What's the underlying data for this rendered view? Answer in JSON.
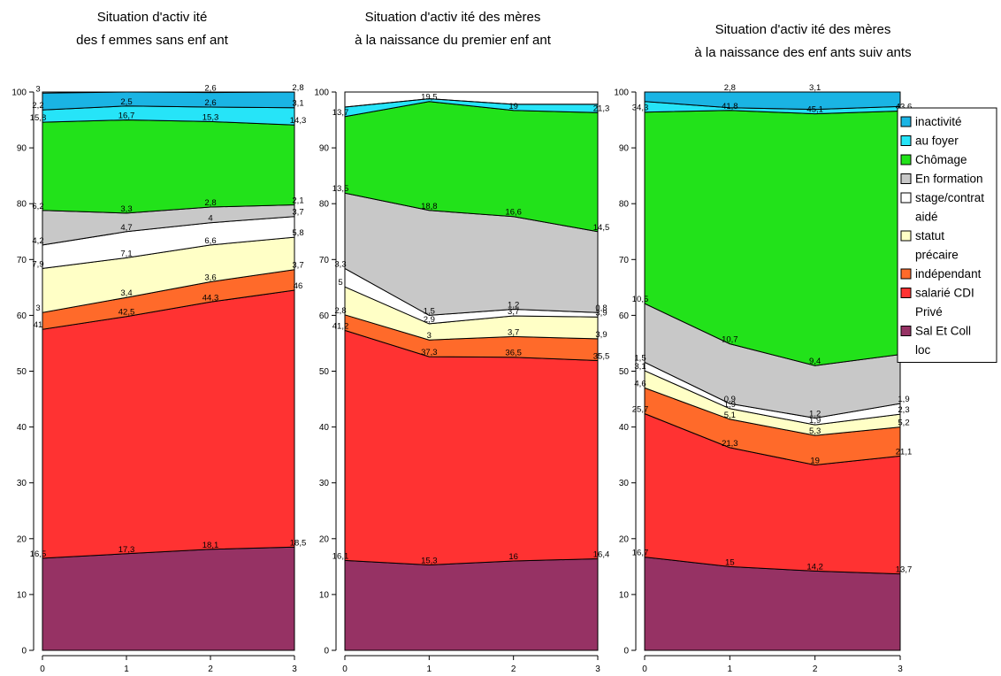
{
  "chart_data": [
    {
      "type": "area",
      "title": [
        "Situation d'activ ité",
        "des f emmes sans enf ant"
      ],
      "x": [
        0,
        1,
        2,
        3
      ],
      "xticks": [
        "0",
        "1",
        "2",
        "3"
      ],
      "ylim": [
        0,
        100
      ],
      "yticks": [
        "0",
        "10",
        "20",
        "30",
        "40",
        "50",
        "60",
        "70",
        "80",
        "90",
        "100"
      ],
      "series": [
        {
          "name": "Sal Et Coll loc",
          "values": [
            16.5,
            17.3,
            18.1,
            18.5
          ],
          "labels": [
            "16,5",
            "17,3",
            "18,1",
            "18,5"
          ]
        },
        {
          "name": "salarié CDI Privé",
          "values": [
            41,
            42.5,
            44.3,
            46
          ],
          "labels": [
            "41",
            "42,5",
            "44,3",
            "46"
          ]
        },
        {
          "name": "indépendant",
          "values": [
            3,
            3.4,
            3.6,
            3.7
          ],
          "labels": [
            "3",
            "3,4",
            "3,6",
            "3,7"
          ]
        },
        {
          "name": "statut précaire",
          "values": [
            7.9,
            7.1,
            6.6,
            5.8
          ],
          "labels": [
            "7,9",
            "7,1",
            "6,6",
            "5,8"
          ]
        },
        {
          "name": "stage/contrat aidé",
          "values": [
            4.2,
            4.7,
            4,
            3.7
          ],
          "labels": [
            "4,2",
            "4,7",
            "4",
            "3,7"
          ]
        },
        {
          "name": "En formation",
          "values": [
            6.2,
            3.3,
            2.8,
            2.1
          ],
          "labels": [
            "6,2",
            "3,3",
            "2,8",
            "2,1"
          ]
        },
        {
          "name": "Chômage",
          "values": [
            15.8,
            16.7,
            15.3,
            14.3
          ],
          "labels": [
            "15,8",
            "16,7",
            "15,3",
            "14,3"
          ]
        },
        {
          "name": "au foyer",
          "values": [
            2.2,
            2.5,
            2.6,
            3.1
          ],
          "labels": [
            "2,2",
            "2,5",
            "2,6",
            "3,1"
          ]
        },
        {
          "name": "inactivité",
          "values": [
            3,
            2.5,
            2.6,
            2.8
          ],
          "labels": [
            "3",
            "",
            "2,6",
            "2,8"
          ]
        }
      ]
    },
    {
      "type": "area",
      "title": [
        "Situation d'activ ité des mères",
        "à la naissance du premier enf ant"
      ],
      "x": [
        0,
        1,
        2,
        3
      ],
      "xticks": [
        "0",
        "1",
        "2",
        "3"
      ],
      "ylim": [
        0,
        100
      ],
      "yticks": [
        "0",
        "10",
        "20",
        "30",
        "40",
        "50",
        "60",
        "70",
        "80",
        "90",
        "100"
      ],
      "series": [
        {
          "name": "Sal Et Coll loc",
          "values": [
            16.1,
            15.3,
            16,
            16.4
          ],
          "labels": [
            "16,1",
            "15,3",
            "16",
            "16,4"
          ]
        },
        {
          "name": "salarié CDI Privé",
          "values": [
            41.2,
            37.3,
            36.5,
            35.5
          ],
          "labels": [
            "41,2",
            "37,3",
            "36,5",
            "35,5"
          ]
        },
        {
          "name": "indépendant",
          "values": [
            2.8,
            3,
            3.7,
            3.9
          ],
          "labels": [
            "2,8",
            "3",
            "3,7",
            "3,9"
          ]
        },
        {
          "name": "statut précaire",
          "values": [
            5,
            2.9,
            3.7,
            3.9
          ],
          "labels": [
            "5",
            "2,9",
            "3,7",
            "3,9"
          ]
        },
        {
          "name": "stage/contrat aidé",
          "values": [
            3.3,
            1.5,
            1.2,
            0.8
          ],
          "labels": [
            "3,3",
            "1,5",
            "1,2",
            "0,8"
          ]
        },
        {
          "name": "En formation",
          "values": [
            13.5,
            18.8,
            16.6,
            14.5
          ],
          "labels": [
            "13,5",
            "18,8",
            "16,6",
            "14,5"
          ]
        },
        {
          "name": "Chômage",
          "values": [
            13.7,
            19.5,
            19,
            21.3
          ],
          "labels": [
            "13,7",
            "19,5",
            "19",
            "21,3"
          ]
        },
        {
          "name": "au foyer",
          "values": [
            1.7,
            0.5,
            1.1,
            1.5
          ],
          "labels": [
            "",
            "",
            "",
            ""
          ]
        },
        {
          "name": "inactivité",
          "values": [
            0,
            0,
            0,
            0
          ],
          "labels": [
            "",
            "",
            "",
            ""
          ]
        }
      ]
    },
    {
      "type": "area",
      "title": [
        "Situation d'activ ité des mères",
        "à la naissance des enf ants suiv ants"
      ],
      "x": [
        0,
        1,
        2,
        3
      ],
      "xticks": [
        "0",
        "1",
        "2",
        "3"
      ],
      "ylim": [
        0,
        100
      ],
      "yticks": [
        "0",
        "10",
        "20",
        "30",
        "40",
        "50",
        "60",
        "70",
        "80",
        "90",
        "100"
      ],
      "series": [
        {
          "name": "Sal Et Coll loc",
          "values": [
            16.7,
            15,
            14.2,
            13.7
          ],
          "labels": [
            "16,7",
            "15",
            "14,2",
            "13,7"
          ]
        },
        {
          "name": "salarié CDI Privé",
          "values": [
            25.7,
            21.3,
            19,
            21.1
          ],
          "labels": [
            "25,7",
            "21,3",
            "19",
            "21,1"
          ]
        },
        {
          "name": "indépendant",
          "values": [
            4.6,
            5.1,
            5.3,
            5.2
          ],
          "labels": [
            "4,6",
            "5,1",
            "5,3",
            "5,2"
          ]
        },
        {
          "name": "statut précaire",
          "values": [
            3.1,
            1.9,
            1.9,
            2.3
          ],
          "labels": [
            "3,1",
            "1,9",
            "1,9",
            "2,3"
          ]
        },
        {
          "name": "stage/contrat aidé",
          "values": [
            1.5,
            0.9,
            1.2,
            1.9
          ],
          "labels": [
            "1,5",
            "0,9",
            "1,2",
            "1,9"
          ]
        },
        {
          "name": "En formation",
          "values": [
            10.5,
            10.7,
            9.4,
            8.8
          ],
          "labels": [
            "10,5",
            "10,7",
            "9,4",
            "8,8"
          ]
        },
        {
          "name": "Chômage",
          "values": [
            34.3,
            41.8,
            45.1,
            43.6
          ],
          "labels": [
            "34,3",
            "41,8",
            "45,1",
            "43,6"
          ]
        },
        {
          "name": "au foyer",
          "values": [
            1.9,
            0.5,
            0.8,
            0.8
          ],
          "labels": [
            "",
            "",
            "",
            ""
          ]
        },
        {
          "name": "inactivité",
          "values": [
            1.7,
            2.8,
            3.1,
            2.6
          ],
          "labels": [
            "",
            "2,8",
            "3,1",
            ""
          ]
        }
      ]
    }
  ],
  "legend": {
    "placement": "right",
    "items": [
      {
        "lines": [
          "inactivité"
        ],
        "color": "#1ab4e4"
      },
      {
        "lines": [
          "au foyer"
        ],
        "color": "#26e4f8"
      },
      {
        "lines": [
          "Chômage"
        ],
        "color": "#22e21a"
      },
      {
        "lines": [
          "En formation"
        ],
        "color": "#c8c8c8"
      },
      {
        "lines": [
          "stage/contrat",
          "aidé"
        ],
        "color": "#ffffff"
      },
      {
        "lines": [
          "statut",
          "précaire"
        ],
        "color": "#ffffc6"
      },
      {
        "lines": [
          "indépendant"
        ],
        "color": "#ff6a2a"
      },
      {
        "lines": [
          "salarié CDI",
          "Privé"
        ],
        "color": "#ff3232"
      },
      {
        "lines": [
          "Sal Et Coll",
          "loc"
        ],
        "color": "#963264"
      }
    ]
  },
  "colors": {
    "Sal Et Coll loc": "#963264",
    "salarié CDI Privé": "#ff3232",
    "indépendant": "#ff6a2a",
    "statut précaire": "#ffffc6",
    "stage/contrat aidé": "#ffffff",
    "En formation": "#c8c8c8",
    "Chômage": "#22e21a",
    "au foyer": "#26e4f8",
    "inactivité": "#1ab4e4"
  }
}
